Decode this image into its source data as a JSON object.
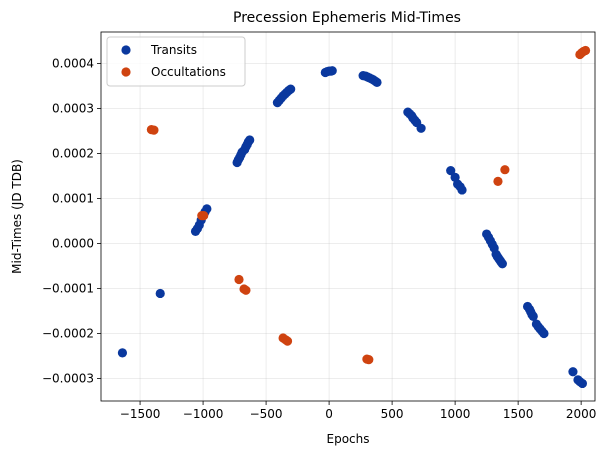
{
  "chart_data": {
    "type": "scatter",
    "title": "Precession Ephemeris Mid-Times",
    "xlabel": "Epochs",
    "ylabel": "Mid-Times (JD TDB)",
    "xlim": [
      -1810,
      2110
    ],
    "ylim": [
      -0.00035,
      0.00047
    ],
    "xticks": [
      -1500,
      -1000,
      -500,
      0,
      500,
      1000,
      1500,
      2000
    ],
    "xtick_labels": [
      "−1500",
      "−1000",
      "−500",
      "0",
      "500",
      "1000",
      "1500",
      "2000"
    ],
    "yticks": [
      -0.0003,
      -0.0002,
      -0.0001,
      0.0,
      0.0001,
      0.0002,
      0.0003,
      0.0004
    ],
    "ytick_labels": [
      "−0.0003",
      "−0.0002",
      "−0.0001",
      "0.0000",
      "0.0001",
      "0.0002",
      "0.0003",
      "0.0004"
    ],
    "grid": true,
    "legend_position": "upper-left",
    "series": [
      {
        "name": "Transits",
        "color": "#0a389e",
        "points": [
          [
            -1640,
            -0.000243
          ],
          [
            -1340,
            -0.000111
          ],
          [
            -1060,
            2.7e-05
          ],
          [
            -1045,
            3.3e-05
          ],
          [
            -1030,
            4.1e-05
          ],
          [
            -1015,
            5.2e-05
          ],
          [
            -1000,
            6.3e-05
          ],
          [
            -985,
            7e-05
          ],
          [
            -970,
            7.7e-05
          ],
          [
            -730,
            0.00018
          ],
          [
            -720,
            0.000186
          ],
          [
            -710,
            0.000191
          ],
          [
            -700,
            0.000197
          ],
          [
            -690,
            0.000203
          ],
          [
            -670,
            0.000209
          ],
          [
            -660,
            0.000215
          ],
          [
            -650,
            0.00022
          ],
          [
            -640,
            0.000226
          ],
          [
            -630,
            0.00023
          ],
          [
            -410,
            0.000313
          ],
          [
            -395,
            0.000318
          ],
          [
            -380,
            0.000323
          ],
          [
            -365,
            0.000328
          ],
          [
            -350,
            0.000332
          ],
          [
            -335,
            0.000336
          ],
          [
            -320,
            0.00034
          ],
          [
            -305,
            0.000343
          ],
          [
            -30,
            0.00038
          ],
          [
            -15,
            0.000382
          ],
          [
            0,
            0.000383
          ],
          [
            15,
            0.000383
          ],
          [
            25,
            0.000384
          ],
          [
            270,
            0.000373
          ],
          [
            290,
            0.000372
          ],
          [
            305,
            0.00037
          ],
          [
            320,
            0.000368
          ],
          [
            335,
            0.000366
          ],
          [
            350,
            0.000364
          ],
          [
            365,
            0.000361
          ],
          [
            380,
            0.000358
          ],
          [
            625,
            0.000292
          ],
          [
            640,
            0.000288
          ],
          [
            655,
            0.000284
          ],
          [
            665,
            0.000279
          ],
          [
            680,
            0.000274
          ],
          [
            695,
            0.000269
          ],
          [
            730,
            0.000256
          ],
          [
            965,
            0.000162
          ],
          [
            1000,
            0.000147
          ],
          [
            1020,
            0.000132
          ],
          [
            1040,
            0.000126
          ],
          [
            1055,
            0.000119
          ],
          [
            1250,
            2.1e-05
          ],
          [
            1265,
            1.4e-05
          ],
          [
            1280,
            6e-06
          ],
          [
            1295,
            -2e-06
          ],
          [
            1310,
            -1e-05
          ],
          [
            1325,
            -2.4e-05
          ],
          [
            1335,
            -2.9e-05
          ],
          [
            1345,
            -3.3e-05
          ],
          [
            1355,
            -3.7e-05
          ],
          [
            1365,
            -4.1e-05
          ],
          [
            1375,
            -4.5e-05
          ],
          [
            1575,
            -0.00014
          ],
          [
            1590,
            -0.000146
          ],
          [
            1600,
            -0.000152
          ],
          [
            1610,
            -0.000158
          ],
          [
            1620,
            -0.000162
          ],
          [
            1645,
            -0.000179
          ],
          [
            1660,
            -0.000185
          ],
          [
            1675,
            -0.00019
          ],
          [
            1690,
            -0.000195
          ],
          [
            1705,
            -0.0002
          ],
          [
            1935,
            -0.000285
          ],
          [
            1975,
            -0.000303
          ],
          [
            1990,
            -0.000307
          ],
          [
            2010,
            -0.000311
          ]
        ]
      },
      {
        "name": "Occultations",
        "color": "#cf4310",
        "points": [
          [
            -1410,
            0.000253
          ],
          [
            -1390,
            0.000252
          ],
          [
            -1010,
            6.2e-05
          ],
          [
            -995,
            6.2e-05
          ],
          [
            -715,
            -8e-05
          ],
          [
            -675,
            -0.000101
          ],
          [
            -660,
            -0.000104
          ],
          [
            -365,
            -0.00021
          ],
          [
            -345,
            -0.000214
          ],
          [
            -330,
            -0.000217
          ],
          [
            300,
            -0.000257
          ],
          [
            315,
            -0.000258
          ],
          [
            1340,
            0.000138
          ],
          [
            1395,
            0.000164
          ],
          [
            1990,
            0.00042
          ],
          [
            2005,
            0.000424
          ],
          [
            2020,
            0.000427
          ],
          [
            2035,
            0.000429
          ]
        ]
      }
    ]
  }
}
